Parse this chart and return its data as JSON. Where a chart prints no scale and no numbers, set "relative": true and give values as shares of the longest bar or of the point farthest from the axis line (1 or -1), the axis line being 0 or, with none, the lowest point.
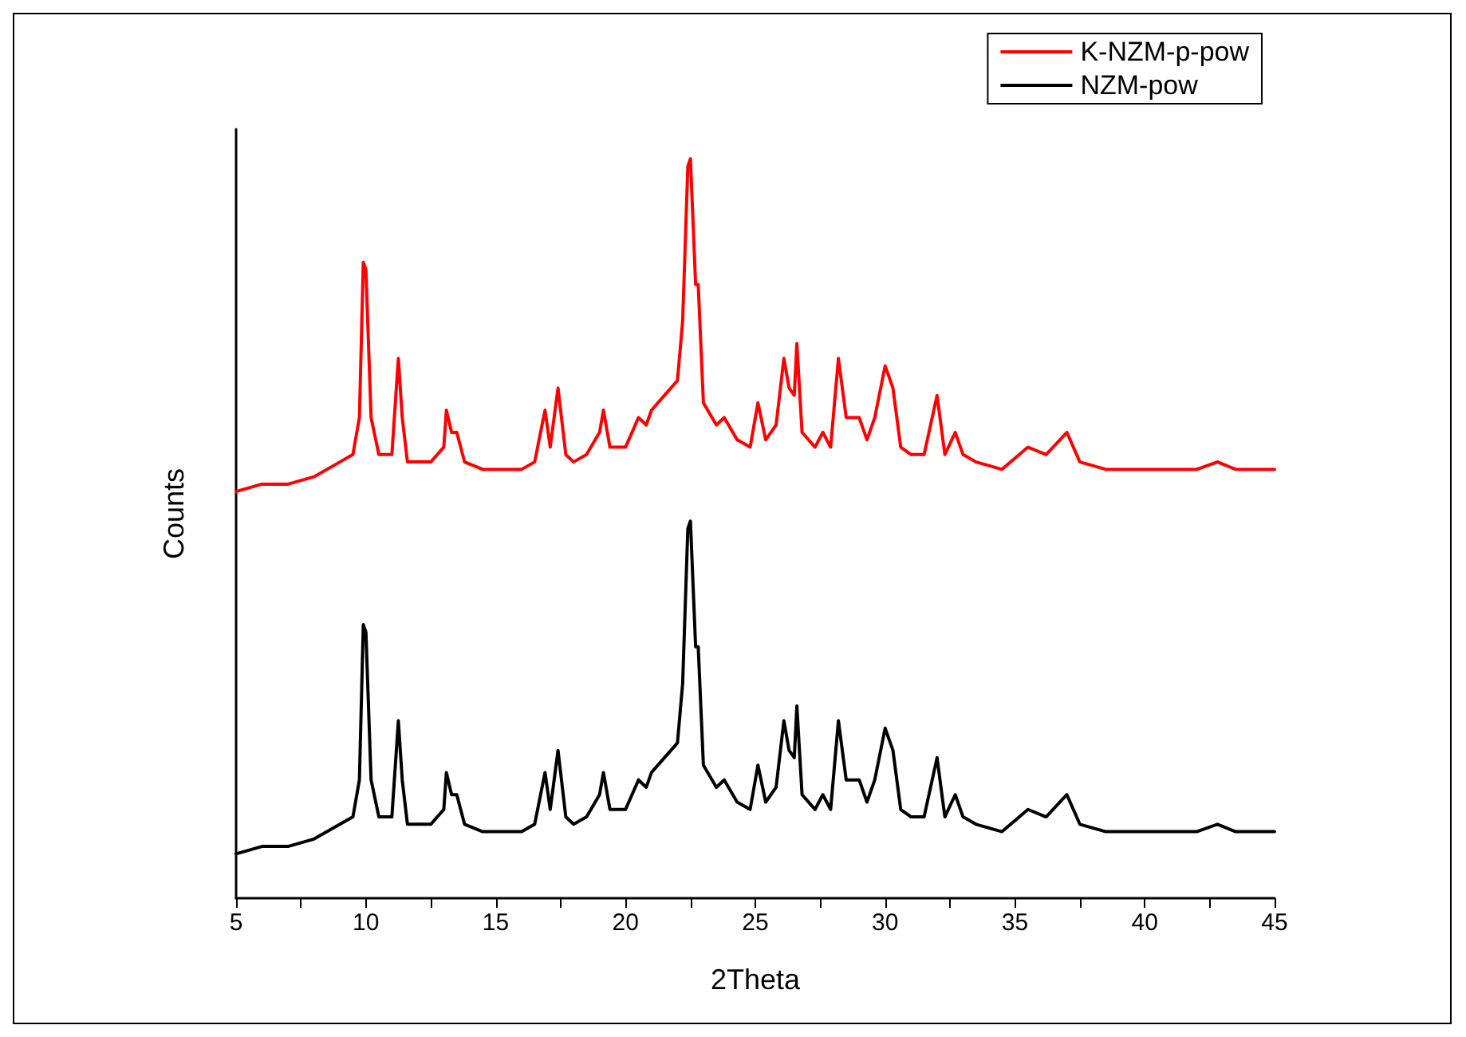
{
  "chart_data": {
    "type": "line",
    "xlabel": "2Theta",
    "ylabel": "Counts",
    "relative": true,
    "xlim": [
      5,
      45
    ],
    "xticks": [
      5,
      10,
      15,
      20,
      25,
      30,
      35,
      40,
      45
    ],
    "tick_labels": "x",
    "legend": "top right",
    "grid": false,
    "marker": "none",
    "line_style": "solid",
    "x": [
      5,
      6,
      7,
      8,
      9,
      9.5,
      9.75,
      9.9,
      10.0,
      10.2,
      10.5,
      11.0,
      11.25,
      11.4,
      11.6,
      12,
      12.5,
      13.0,
      13.1,
      13.3,
      13.5,
      13.8,
      14.5,
      15,
      16,
      16.5,
      16.9,
      17.1,
      17.4,
      17.7,
      18,
      18.5,
      19.0,
      19.15,
      19.4,
      20,
      20.5,
      20.8,
      21.0,
      21.5,
      22.0,
      22.2,
      22.4,
      22.5,
      22.7,
      22.8,
      23.0,
      23.5,
      23.8,
      24.3,
      24.8,
      25.1,
      25.4,
      25.8,
      26.1,
      26.3,
      26.5,
      26.6,
      26.8,
      27.3,
      27.6,
      27.9,
      28.2,
      28.5,
      29.0,
      29.3,
      29.6,
      30.0,
      30.3,
      30.6,
      31.0,
      31.5,
      32.0,
      32.3,
      32.7,
      33.0,
      33.5,
      34.5,
      35.5,
      36.2,
      37.0,
      37.5,
      38.5,
      40,
      41,
      42,
      42.8,
      43.5,
      44.5,
      45
    ],
    "series": [
      {
        "name": "K-NZM-p-pow",
        "color": "#ff0000",
        "values": [
          0.55,
          0.56,
          0.56,
          0.57,
          0.59,
          0.6,
          0.65,
          0.86,
          0.85,
          0.65,
          0.6,
          0.6,
          0.73,
          0.65,
          0.59,
          0.59,
          0.59,
          0.61,
          0.66,
          0.63,
          0.63,
          0.59,
          0.58,
          0.58,
          0.58,
          0.59,
          0.66,
          0.61,
          0.69,
          0.6,
          0.59,
          0.6,
          0.63,
          0.66,
          0.61,
          0.61,
          0.65,
          0.64,
          0.66,
          0.68,
          0.7,
          0.78,
          0.99,
          1,
          0.83,
          0.83,
          0.67,
          0.64,
          0.65,
          0.62,
          0.61,
          0.67,
          0.62,
          0.64,
          0.73,
          0.69,
          0.68,
          0.75,
          0.63,
          0.61,
          0.63,
          0.61,
          0.73,
          0.65,
          0.65,
          0.62,
          0.65,
          0.72,
          0.69,
          0.61,
          0.6,
          0.6,
          0.68,
          0.6,
          0.63,
          0.6,
          0.59,
          0.58,
          0.61,
          0.6,
          0.63,
          0.59,
          0.58,
          0.58,
          0.58,
          0.58,
          0.59,
          0.58,
          0.58,
          0.58
        ]
      },
      {
        "name": "NZM-pow",
        "color": "#000000",
        "values": [
          0.06,
          0.07,
          0.07,
          0.08,
          0.1,
          0.11,
          0.16,
          0.37,
          0.36,
          0.16,
          0.11,
          0.11,
          0.24,
          0.16,
          0.1,
          0.1,
          0.1,
          0.12,
          0.17,
          0.14,
          0.14,
          0.1,
          0.09,
          0.09,
          0.09,
          0.1,
          0.17,
          0.12,
          0.2,
          0.11,
          0.1,
          0.11,
          0.14,
          0.17,
          0.12,
          0.12,
          0.16,
          0.15,
          0.17,
          0.19,
          0.21,
          0.29,
          0.5,
          0.51,
          0.34,
          0.34,
          0.18,
          0.15,
          0.16,
          0.13,
          0.12,
          0.18,
          0.13,
          0.15,
          0.24,
          0.2,
          0.19,
          0.26,
          0.14,
          0.12,
          0.14,
          0.12,
          0.24,
          0.16,
          0.16,
          0.13,
          0.16,
          0.23,
          0.2,
          0.12,
          0.11,
          0.11,
          0.19,
          0.11,
          0.14,
          0.11,
          0.1,
          0.09,
          0.12,
          0.11,
          0.14,
          0.1,
          0.09,
          0.09,
          0.09,
          0.09,
          0.1,
          0.09,
          0.09,
          0.09
        ]
      }
    ]
  }
}
